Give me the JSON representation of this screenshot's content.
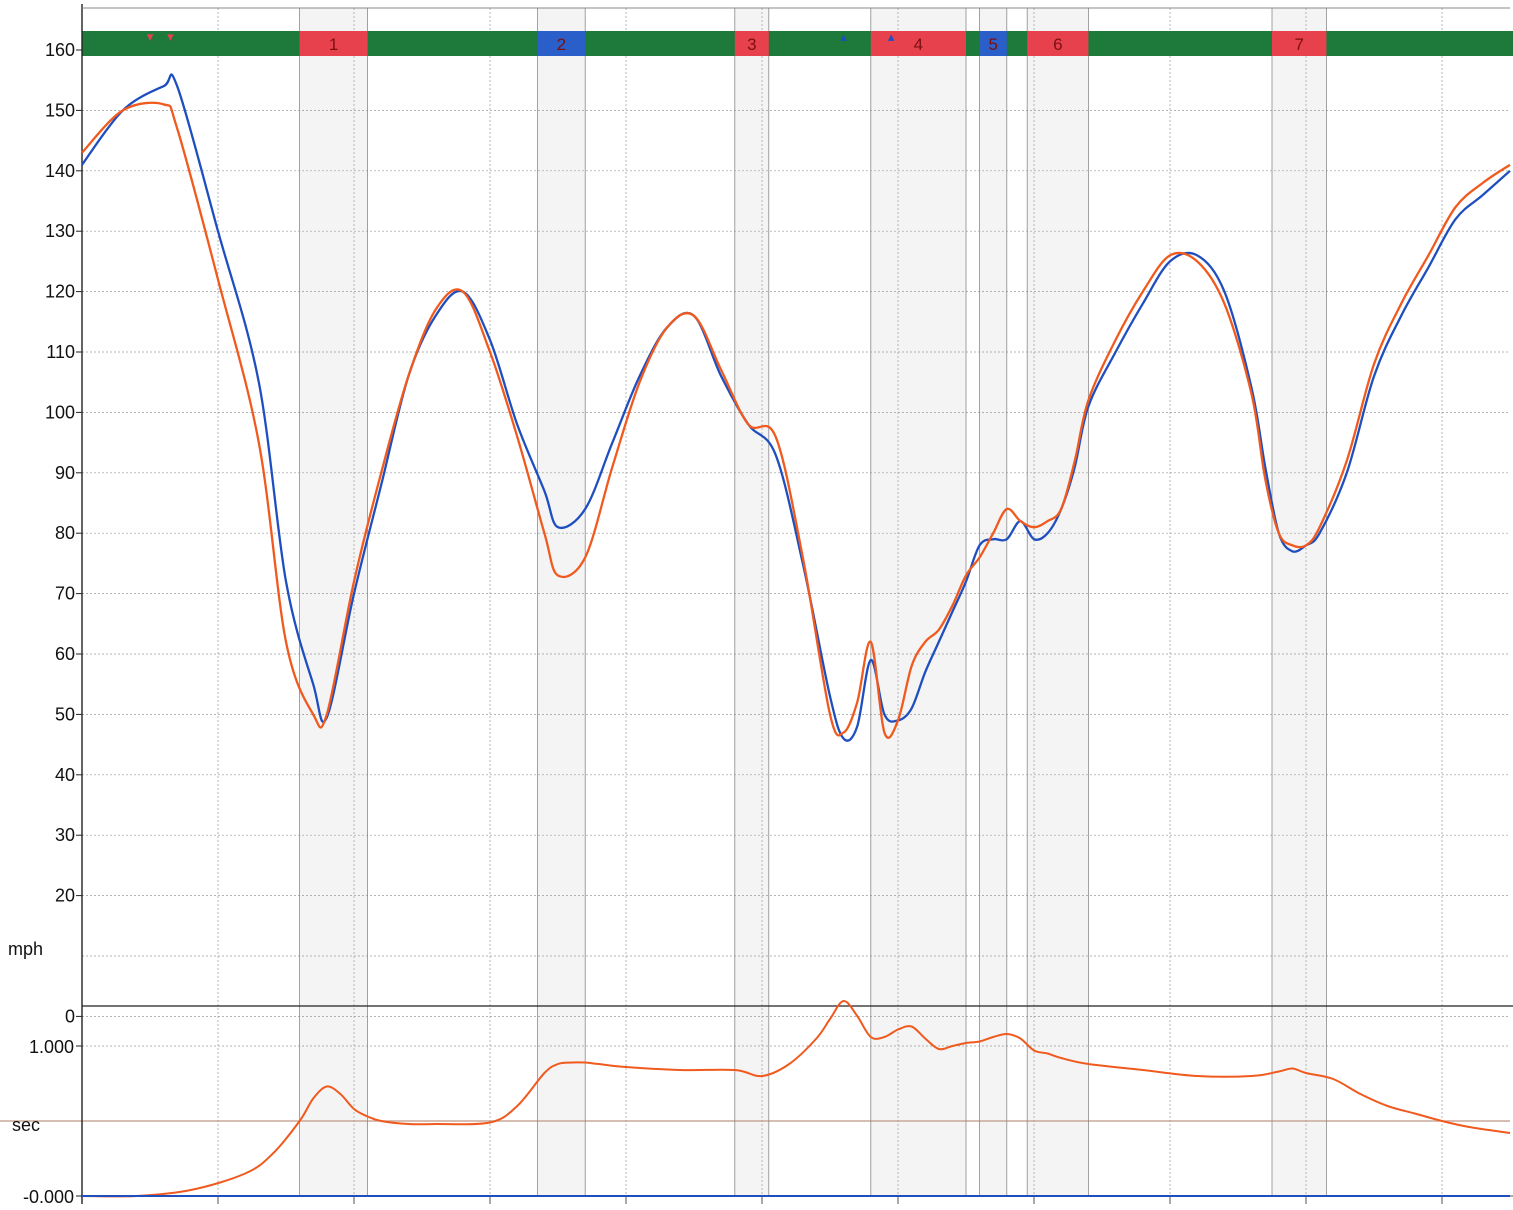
{
  "colors": {
    "trackGreen": "#1e7a3a",
    "segmentRed": "#e8414e",
    "segmentBlue": "#2a5ec8",
    "lapBlue": "#1f4fbf",
    "lapOrange": "#f05a1e",
    "grid": "#9a9a9a",
    "axis": "#222222",
    "referenceLine": "#c9a89a"
  },
  "chart_data": [
    {
      "type": "line",
      "ylabel": "mph",
      "ylim": [
        0,
        163
      ],
      "yticks": [
        "160",
        "150",
        "140",
        "130",
        "120",
        "110",
        "100",
        "90",
        "80",
        "70",
        "60",
        "50",
        "40",
        "30",
        "20",
        "0"
      ],
      "grid": true,
      "segments": [
        {
          "label": "1",
          "kind": "corner",
          "start": 16.0,
          "end": 21.0
        },
        {
          "label": "2",
          "kind": "straight",
          "start": 33.5,
          "end": 37.0
        },
        {
          "label": "3",
          "kind": "corner",
          "start": 48.0,
          "end": 50.5
        },
        {
          "label": "4",
          "kind": "corner",
          "start": 58.0,
          "end": 65.0
        },
        {
          "label": "5",
          "kind": "straight",
          "start": 66.0,
          "end": 68.0
        },
        {
          "label": "6",
          "kind": "corner",
          "start": 69.5,
          "end": 74.0
        },
        {
          "label": "7",
          "kind": "corner",
          "start": 87.5,
          "end": 91.5
        }
      ],
      "markers": [
        {
          "symbol": "▾",
          "color": "#e8414e",
          "x": 5.0
        },
        {
          "symbol": "▾",
          "color": "#e8414e",
          "x": 6.5
        },
        {
          "symbol": "▴",
          "color": "#1f4fbf",
          "x": 56.0
        },
        {
          "symbol": "▴",
          "color": "#1f4fbf",
          "x": 59.5
        }
      ],
      "x": [
        0,
        3,
        6,
        7,
        10,
        13,
        15,
        17,
        18,
        20,
        22,
        24,
        26,
        28,
        30,
        32,
        34,
        35,
        37,
        39,
        41,
        43,
        45,
        47,
        49,
        51,
        53,
        55,
        56,
        57,
        58,
        59,
        60,
        61,
        62,
        63,
        64,
        65,
        66,
        67,
        68,
        69,
        70,
        71,
        72,
        73,
        74,
        76,
        78,
        80,
        82,
        84,
        86,
        87,
        88,
        89,
        90,
        91,
        93,
        95,
        97,
        99,
        101,
        103,
        105
      ],
      "series": [
        {
          "color": "#1f4fbf",
          "values": [
            141,
            150,
            154,
            154,
            130,
            105,
            72,
            55,
            49.5,
            70,
            88,
            106,
            116,
            120,
            112,
            98,
            87,
            81,
            84,
            95,
            106,
            114,
            116,
            106,
            98,
            93,
            75,
            53,
            46,
            48,
            59,
            50,
            49,
            51,
            57,
            62,
            67,
            72,
            78,
            79,
            79,
            82,
            79,
            80,
            84,
            91,
            101,
            110,
            118,
            125,
            126,
            120,
            104,
            91,
            80,
            77,
            78,
            80,
            90,
            106,
            116,
            124,
            132,
            136,
            140
          ]
        },
        {
          "color": "#f05a1e",
          "values": [
            143,
            150,
            151,
            147,
            122,
            95,
            62,
            50,
            50,
            72,
            90,
            106,
            117,
            120,
            110,
            96,
            80,
            73,
            76,
            91,
            105,
            114,
            116,
            107,
            98,
            96,
            76,
            50,
            47,
            52,
            62,
            47,
            49,
            58,
            62,
            64,
            68,
            73,
            76,
            80,
            84,
            82,
            81,
            82,
            84,
            92,
            102,
            112,
            120,
            126,
            125,
            118,
            103,
            89,
            80,
            78,
            78,
            81,
            92,
            108,
            118,
            126,
            134,
            138,
            141
          ]
        }
      ]
    },
    {
      "type": "line",
      "ylabel": "sec",
      "yticks": [
        "1.000",
        "-0.000"
      ],
      "reference_value": 0.5,
      "ylim": [
        -0.05,
        1.3
      ],
      "x": [
        0,
        4,
        8,
        12,
        14,
        16,
        17,
        18,
        19,
        20,
        21,
        22,
        24,
        26,
        30,
        32,
        34,
        35,
        36,
        37,
        38,
        40,
        44,
        48,
        50,
        52,
        54,
        55,
        56,
        57,
        58,
        59,
        60,
        61,
        62,
        63,
        64,
        65,
        66,
        67,
        68,
        69,
        70,
        71,
        72,
        74,
        78,
        82,
        86,
        88,
        89,
        90,
        92,
        94,
        96,
        98,
        100,
        102,
        105
      ],
      "series": [
        {
          "color": "#f05a1e",
          "values": [
            0.0,
            0.0,
            0.04,
            0.15,
            0.28,
            0.5,
            0.65,
            0.73,
            0.68,
            0.58,
            0.53,
            0.5,
            0.48,
            0.48,
            0.49,
            0.6,
            0.82,
            0.88,
            0.89,
            0.89,
            0.88,
            0.86,
            0.84,
            0.84,
            0.8,
            0.88,
            1.05,
            1.18,
            1.3,
            1.2,
            1.06,
            1.06,
            1.11,
            1.13,
            1.05,
            0.98,
            1.0,
            1.02,
            1.03,
            1.06,
            1.08,
            1.05,
            0.97,
            0.95,
            0.92,
            0.88,
            0.84,
            0.8,
            0.8,
            0.83,
            0.85,
            0.82,
            0.78,
            0.68,
            0.6,
            0.55,
            0.5,
            0.46,
            0.42
          ]
        },
        {
          "color": "#1f4fbf",
          "values": [
            0.0,
            0.0,
            0.0,
            0.0,
            0.0,
            0.0,
            0.0,
            0.0,
            0.0,
            0.0,
            0.0,
            0.0,
            0.0,
            0.0,
            0.0,
            0.0,
            0.0,
            0.0,
            0.0,
            0.0,
            0.0,
            0.0,
            0.0,
            0.0,
            0.0,
            0.0,
            0.0,
            0.0,
            0.0,
            0.0,
            0.0,
            0.0,
            0.0,
            0.0,
            0.0,
            0.0,
            0.0,
            0.0,
            0.0,
            0.0,
            0.0,
            0.0,
            0.0,
            0.0,
            0.0,
            0.0,
            0.0,
            0.0,
            0.0,
            0.0,
            0.0,
            0.0,
            0.0,
            0.0,
            0.0,
            0.0,
            0.0,
            0.0,
            0.0
          ]
        }
      ]
    }
  ]
}
